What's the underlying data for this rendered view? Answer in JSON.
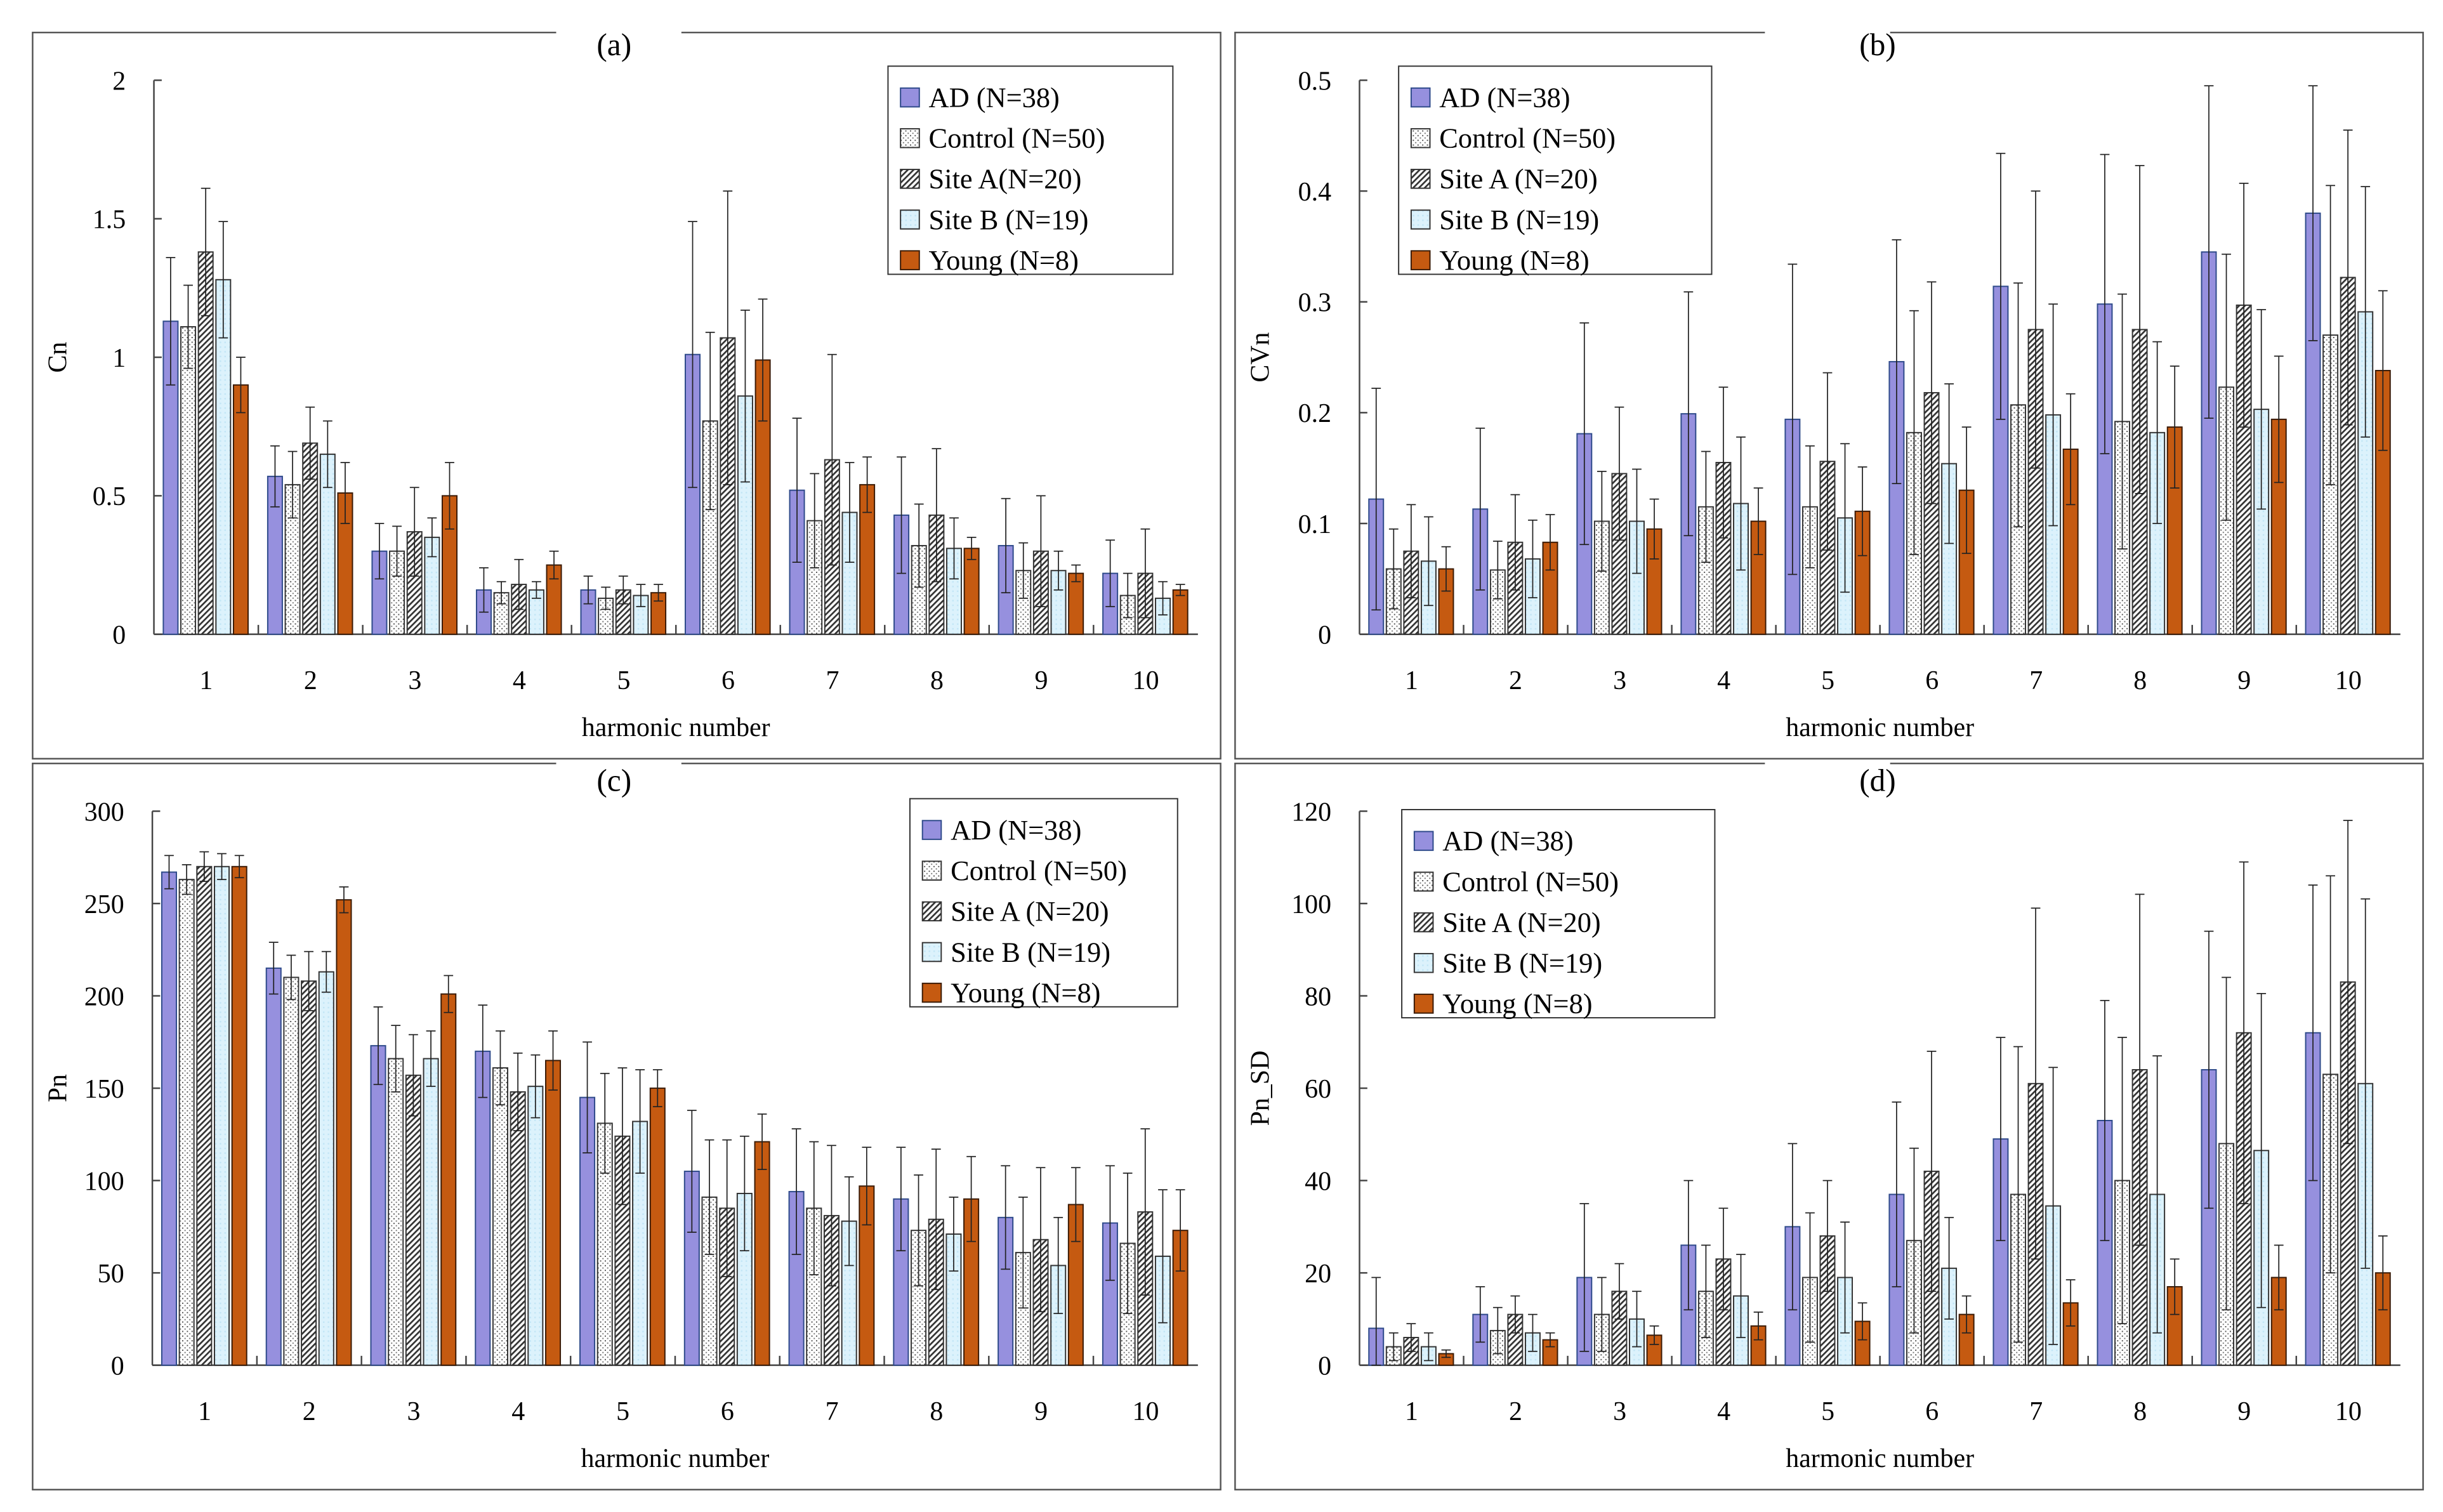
{
  "series_styles": {
    "AD": {
      "fill": "#9690de",
      "stroke": "#2e4a8a",
      "pattern": "solid"
    },
    "Control": {
      "fill": "#ffffff",
      "stroke": "#333333",
      "pattern": "dots"
    },
    "SiteA": {
      "fill": "#ffffff",
      "stroke": "#333333",
      "pattern": "hatch"
    },
    "SiteB": {
      "fill": "#dcf2fc",
      "stroke": "#333333",
      "pattern": "lightdots"
    },
    "Young": {
      "fill": "#c55a11",
      "stroke": "#3a1a05",
      "pattern": "solid"
    }
  },
  "chart_data": [
    {
      "type": "bar",
      "title": "(a)",
      "xlabel": "harmonic number",
      "ylabel": "Cn",
      "ylim": [
        0,
        2
      ],
      "yticks": [
        "0",
        "0.5",
        "1",
        "1.5",
        "2"
      ],
      "ytick_values": [
        0,
        0.5,
        1,
        1.5,
        2
      ],
      "legend_position": "top-right",
      "categories": [
        "1",
        "2",
        "3",
        "4",
        "5",
        "6",
        "7",
        "8",
        "9",
        "10"
      ],
      "series": [
        {
          "key": "AD",
          "name": "AD (N=38)",
          "values": [
            1.13,
            0.57,
            0.3,
            0.16,
            0.16,
            1.01,
            0.52,
            0.43,
            0.32,
            0.22
          ],
          "errors": [
            0.23,
            0.11,
            0.1,
            0.08,
            0.05,
            0.48,
            0.26,
            0.21,
            0.17,
            0.12
          ]
        },
        {
          "key": "Control",
          "name": "Control (N=50)",
          "values": [
            1.11,
            0.54,
            0.3,
            0.15,
            0.13,
            0.77,
            0.41,
            0.32,
            0.23,
            0.14
          ],
          "errors": [
            0.15,
            0.12,
            0.09,
            0.04,
            0.04,
            0.32,
            0.17,
            0.15,
            0.1,
            0.08
          ]
        },
        {
          "key": "SiteA",
          "name": "Site A(N=20)",
          "values": [
            1.38,
            0.69,
            0.37,
            0.18,
            0.16,
            1.07,
            0.63,
            0.43,
            0.3,
            0.22
          ],
          "errors": [
            0.23,
            0.13,
            0.16,
            0.09,
            0.05,
            0.53,
            0.38,
            0.24,
            0.2,
            0.16
          ]
        },
        {
          "key": "SiteB",
          "name": "Site B (N=19)",
          "values": [
            1.28,
            0.65,
            0.35,
            0.16,
            0.14,
            0.86,
            0.44,
            0.31,
            0.23,
            0.13
          ],
          "errors": [
            0.21,
            0.12,
            0.07,
            0.03,
            0.04,
            0.31,
            0.18,
            0.11,
            0.07,
            0.06
          ]
        },
        {
          "key": "Young",
          "name": "Young (N=8)",
          "values": [
            0.9,
            0.51,
            0.5,
            0.25,
            0.15,
            0.99,
            0.54,
            0.31,
            0.22,
            0.16
          ],
          "errors": [
            0.1,
            0.11,
            0.12,
            0.05,
            0.03,
            0.22,
            0.1,
            0.04,
            0.03,
            0.02
          ]
        }
      ]
    },
    {
      "type": "bar",
      "title": "(b)",
      "xlabel": "harmonic number",
      "ylabel": "CVn",
      "ylim": [
        0,
        0.5
      ],
      "yticks": [
        "0",
        "0.1",
        "0.2",
        "0.3",
        "0.4",
        "0.5"
      ],
      "ytick_values": [
        0,
        0.1,
        0.2,
        0.3,
        0.4,
        0.5
      ],
      "legend_position": "top-left",
      "categories": [
        "1",
        "2",
        "3",
        "4",
        "5",
        "6",
        "7",
        "8",
        "9",
        "10"
      ],
      "series": [
        {
          "key": "AD",
          "name": "AD (N=38)",
          "values": [
            0.122,
            0.113,
            0.181,
            0.199,
            0.194,
            0.246,
            0.314,
            0.298,
            0.345,
            0.38
          ],
          "errors": [
            0.1,
            0.073,
            0.1,
            0.11,
            0.14,
            0.11,
            0.12,
            0.135,
            0.15,
            0.115
          ]
        },
        {
          "key": "Control",
          "name": "Control (N=50)",
          "values": [
            0.059,
            0.058,
            0.102,
            0.115,
            0.115,
            0.182,
            0.207,
            0.192,
            0.223,
            0.27
          ],
          "errors": [
            0.036,
            0.026,
            0.045,
            0.05,
            0.055,
            0.11,
            0.11,
            0.115,
            0.12,
            0.135
          ]
        },
        {
          "key": "SiteA",
          "name": "Site A (N=20)",
          "values": [
            0.075,
            0.083,
            0.145,
            0.155,
            0.156,
            0.218,
            0.275,
            0.275,
            0.297,
            0.322
          ],
          "errors": [
            0.042,
            0.043,
            0.06,
            0.068,
            0.08,
            0.1,
            0.125,
            0.148,
            0.11,
            0.133
          ]
        },
        {
          "key": "SiteB",
          "name": "Site B (N=19)",
          "values": [
            0.066,
            0.068,
            0.102,
            0.118,
            0.105,
            0.154,
            0.198,
            0.182,
            0.203,
            0.291
          ],
          "errors": [
            0.04,
            0.035,
            0.047,
            0.06,
            0.067,
            0.072,
            0.1,
            0.082,
            0.09,
            0.113
          ]
        },
        {
          "key": "Young",
          "name": "Young (N=8)",
          "values": [
            0.059,
            0.083,
            0.095,
            0.102,
            0.111,
            0.13,
            0.167,
            0.187,
            0.194,
            0.238
          ],
          "errors": [
            0.02,
            0.025,
            0.027,
            0.03,
            0.04,
            0.057,
            0.05,
            0.055,
            0.057,
            0.072
          ]
        }
      ]
    },
    {
      "type": "bar",
      "title": "(c)",
      "xlabel": "harmonic number",
      "ylabel": "Pn",
      "ylim": [
        0,
        300
      ],
      "yticks": [
        "0",
        "50",
        "100",
        "150",
        "200",
        "250",
        "300"
      ],
      "ytick_values": [
        0,
        50,
        100,
        150,
        200,
        250,
        300
      ],
      "legend_position": "top-right",
      "categories": [
        "1",
        "2",
        "3",
        "4",
        "5",
        "6",
        "7",
        "8",
        "9",
        "10"
      ],
      "series": [
        {
          "key": "AD",
          "name": "AD (N=38)",
          "values": [
            267,
            215,
            173,
            170,
            145,
            105,
            94,
            90,
            80,
            77
          ],
          "errors": [
            9,
            14,
            21,
            25,
            30,
            33,
            34,
            28,
            28,
            31
          ]
        },
        {
          "key": "Control",
          "name": "Control (N=50)",
          "values": [
            263,
            210,
            166,
            161,
            131,
            91,
            85,
            73,
            61,
            66
          ],
          "errors": [
            8,
            12,
            18,
            20,
            27,
            31,
            36,
            30,
            30,
            38
          ]
        },
        {
          "key": "SiteA",
          "name": "Site A (N=20)",
          "values": [
            270,
            208,
            157,
            148,
            124,
            85,
            81,
            79,
            68,
            83
          ],
          "errors": [
            8,
            16,
            22,
            21,
            37,
            37,
            38,
            38,
            39,
            45
          ]
        },
        {
          "key": "SiteB",
          "name": "Site B (N=19)",
          "values": [
            270,
            213,
            166,
            151,
            132,
            93,
            78,
            71,
            54,
            59
          ],
          "errors": [
            7,
            11,
            15,
            17,
            28,
            31,
            24,
            20,
            26,
            36
          ]
        },
        {
          "key": "Young",
          "name": "Young (N=8)",
          "values": [
            270,
            252,
            201,
            165,
            150,
            121,
            97,
            90,
            87,
            73
          ],
          "errors": [
            6,
            7,
            10,
            16,
            10,
            15,
            21,
            23,
            20,
            22
          ]
        }
      ]
    },
    {
      "type": "bar",
      "title": "(d)",
      "xlabel": "harmonic number",
      "ylabel": "Pn_SD",
      "ylim": [
        0,
        120
      ],
      "yticks": [
        "0",
        "20",
        "40",
        "60",
        "80",
        "100",
        "120"
      ],
      "ytick_values": [
        0,
        20,
        40,
        60,
        80,
        100,
        120
      ],
      "legend_position": "top-left",
      "categories": [
        "1",
        "2",
        "3",
        "4",
        "5",
        "6",
        "7",
        "8",
        "9",
        "10"
      ],
      "series": [
        {
          "key": "AD",
          "name": "AD (N=38)",
          "values": [
            8,
            11,
            19,
            26,
            30,
            37,
            49,
            53,
            64,
            72
          ],
          "errors": [
            11,
            6,
            16,
            14,
            18,
            20,
            22,
            26,
            30,
            32
          ]
        },
        {
          "key": "Control",
          "name": "Control (N=50)",
          "values": [
            4,
            7.5,
            11,
            16,
            19,
            27,
            37,
            40,
            48,
            63
          ],
          "errors": [
            3,
            5,
            8,
            10,
            14,
            20,
            32,
            31,
            36,
            43
          ]
        },
        {
          "key": "SiteA",
          "name": "Site A (N=20)",
          "values": [
            6,
            11,
            16,
            23,
            28,
            42,
            61,
            64,
            72,
            83
          ],
          "errors": [
            3,
            4,
            6,
            11,
            12,
            26,
            38,
            38,
            37,
            35
          ]
        },
        {
          "key": "SiteB",
          "name": "Site B (N=19)",
          "values": [
            4,
            7,
            10,
            15,
            19,
            21,
            34.5,
            37,
            46.5,
            61
          ],
          "errors": [
            3,
            4,
            6,
            9,
            12,
            11,
            30,
            30,
            34,
            40
          ]
        },
        {
          "key": "Young",
          "name": "Young (N=8)",
          "values": [
            2.5,
            5.5,
            6.5,
            8.5,
            9.5,
            11,
            13.5,
            17,
            19,
            20
          ],
          "errors": [
            0.8,
            1.5,
            2,
            3,
            4,
            4,
            5,
            6,
            7,
            8
          ]
        }
      ]
    }
  ]
}
